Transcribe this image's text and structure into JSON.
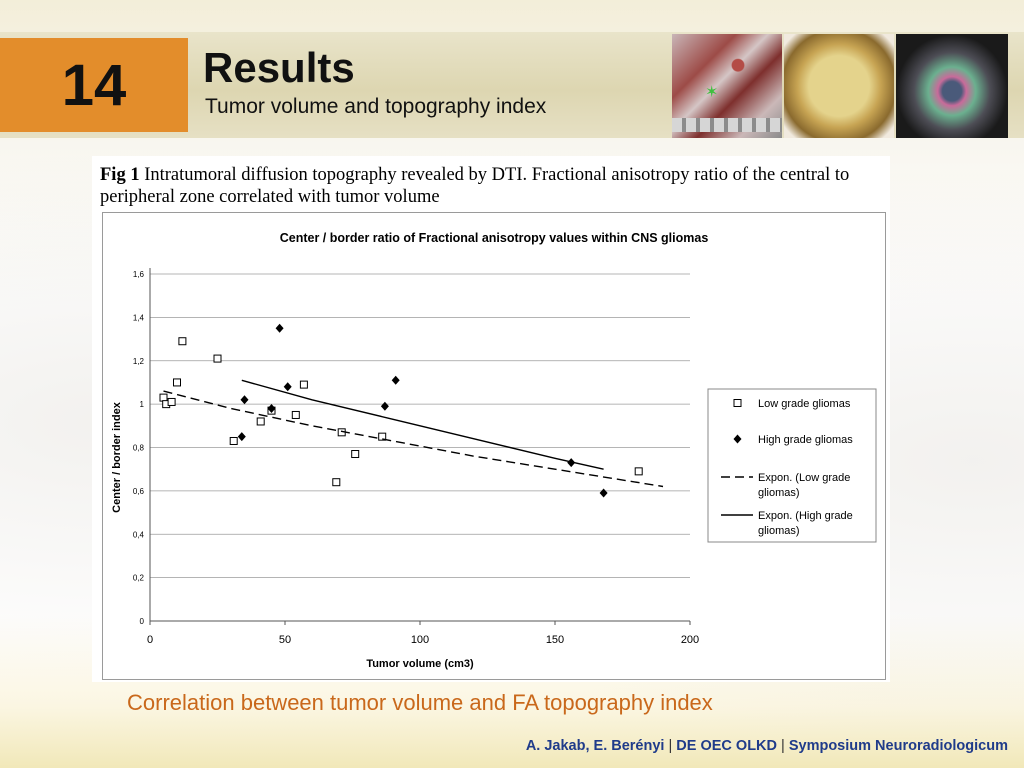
{
  "slide": {
    "number": "14",
    "title": "Results",
    "subtitle": "Tumor volume and topography index"
  },
  "figure": {
    "caption_label": "Fig 1",
    "caption_text": " Intratumoral diffusion topography revealed by DTI. Fractional anisotropy ratio of the central to peripheral zone correlated with tumor volume"
  },
  "bottom_caption": "Correlation between tumor volume and FA topography index",
  "footer": {
    "authors": "A. Jakab, E. Berényi",
    "org": "DE OEC OLKD",
    "event": "Symposium Neuroradiologicum",
    "separator": "|"
  },
  "chart_data": {
    "type": "scatter",
    "title": "Center / border ratio of Fractional anisotropy values within CNS gliomas",
    "xlabel": "Tumor volume (cm3)",
    "ylabel": "Center / border index",
    "xlim": [
      0,
      200
    ],
    "ylim": [
      0,
      1.6
    ],
    "x_ticks": [
      "0",
      "50",
      "100",
      "150",
      "200"
    ],
    "y_ticks": [
      "0",
      "0,2",
      "0,4",
      "0,6",
      "0,8",
      "1",
      "1,2",
      "1,4",
      "1,6"
    ],
    "grid": "horizontal",
    "legend_position": "right",
    "series": [
      {
        "name": "Low grade gliomas",
        "marker": "open-square",
        "x": [
          5,
          6,
          8,
          10,
          12,
          25,
          31,
          41,
          45,
          54,
          57,
          69,
          71,
          76,
          86,
          181
        ],
        "y": [
          1.03,
          1.0,
          1.01,
          1.1,
          1.29,
          1.21,
          0.83,
          0.92,
          0.97,
          0.95,
          1.09,
          0.64,
          0.87,
          0.77,
          0.85,
          0.69
        ]
      },
      {
        "name": "High grade gliomas",
        "marker": "filled-diamond",
        "x": [
          34,
          35,
          45,
          48,
          51,
          87,
          91,
          156,
          168
        ],
        "y": [
          0.85,
          1.02,
          0.98,
          1.35,
          1.08,
          0.99,
          1.11,
          0.73,
          0.59
        ]
      },
      {
        "name": "Expon. (Low grade gliomas)",
        "style": "dashed",
        "x": [
          5,
          30,
          60,
          90,
          120,
          150,
          190
        ],
        "y": [
          1.06,
          0.98,
          0.9,
          0.83,
          0.76,
          0.7,
          0.62
        ]
      },
      {
        "name": "Expon. (High grade gliomas)",
        "style": "solid",
        "x": [
          34,
          60,
          90,
          120,
          150,
          168
        ],
        "y": [
          1.11,
          1.02,
          0.93,
          0.84,
          0.75,
          0.7
        ]
      }
    ],
    "legend_lines": [
      [
        "Low grade gliomas"
      ],
      [
        "High grade gliomas"
      ],
      [
        "Expon. (Low grade",
        "gliomas)"
      ],
      [
        "Expon. (High grade",
        "gliomas)"
      ]
    ]
  }
}
